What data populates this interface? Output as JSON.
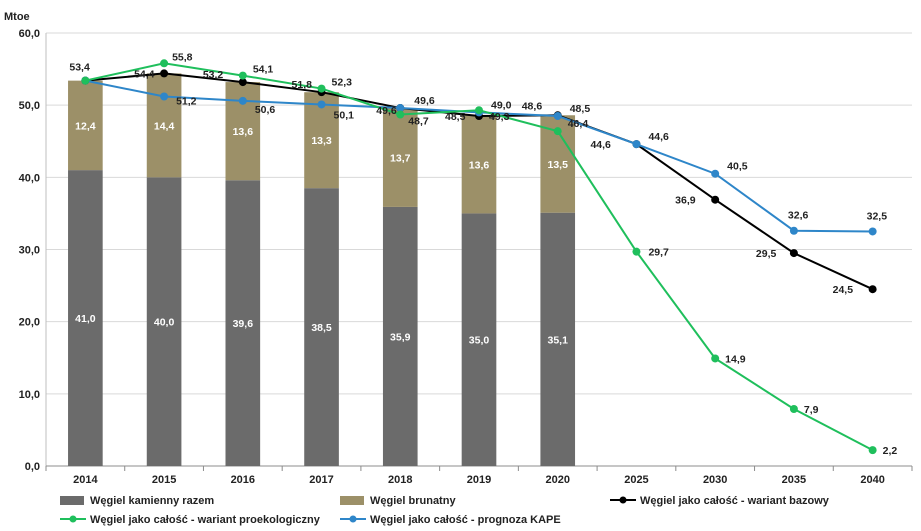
{
  "chart_data": {
    "type": "bar",
    "ylabel": "Mtoe",
    "ylim": [
      0,
      60
    ],
    "yticks": [
      "0,0",
      "10,0",
      "20,0",
      "30,0",
      "40,0",
      "50,0",
      "60,0"
    ],
    "categories": [
      "2014",
      "2015",
      "2016",
      "2017",
      "2018",
      "2019",
      "2020",
      "2025",
      "2030",
      "2035",
      "2040"
    ],
    "grid": true,
    "legend_position": "bottom",
    "colors": {
      "hard_coal": "#6b6b6b",
      "lignite": "#9c9068",
      "base": "#000000",
      "proeco": "#1fbf5c",
      "kape": "#2e86c9",
      "grid": "#d9d9d9"
    },
    "bar_series": [
      {
        "name": "Węgiel kamienny razem",
        "values": [
          41.0,
          40.0,
          39.6,
          38.5,
          35.9,
          35.0,
          35.1,
          null,
          null,
          null,
          null
        ],
        "labels": [
          "41,0",
          "40,0",
          "39,6",
          "38,5",
          "35,9",
          "35,0",
          "35,1",
          "",
          "",
          "",
          ""
        ]
      },
      {
        "name": "Węgiel brunatny",
        "values": [
          12.4,
          14.4,
          13.6,
          13.3,
          13.7,
          13.6,
          13.5,
          null,
          null,
          null,
          null
        ],
        "labels": [
          "12,4",
          "14,4",
          "13,6",
          "13,3",
          "13,7",
          "13,6",
          "13,5",
          "",
          "",
          "",
          ""
        ]
      }
    ],
    "line_series": [
      {
        "name": "Węgiel jako całość - wariant bazowy",
        "values": [
          53.4,
          54.4,
          53.2,
          51.8,
          49.6,
          48.5,
          48.6,
          44.6,
          36.9,
          29.5,
          24.5
        ],
        "labels": [
          "",
          "54,4",
          "53,2",
          "51,8",
          "49,6",
          "48,5",
          "48,6",
          "44,6",
          "36,9",
          "29,5",
          "24,5"
        ]
      },
      {
        "name": "Węgiel jako całość - wariant proekologiczny",
        "values": [
          53.4,
          55.8,
          54.1,
          52.3,
          48.7,
          49.3,
          46.4,
          29.7,
          14.9,
          7.9,
          2.2
        ],
        "labels": [
          "53,4",
          "55,8",
          "54,1",
          "52,3",
          "48,7",
          "49,3",
          "46,4",
          "29,7",
          "14,9",
          "7,9",
          "2,2"
        ]
      },
      {
        "name": "Węgiel jako całość - prognoza KAPE",
        "values": [
          53.4,
          51.2,
          50.6,
          50.1,
          49.6,
          49.0,
          48.5,
          44.6,
          40.5,
          32.6,
          32.5
        ],
        "labels": [
          "",
          "51,2",
          "50,6",
          "50,1",
          "49,6",
          "49,0",
          "48,5",
          "44,6",
          "40,5",
          "32,6",
          "32,5"
        ]
      }
    ]
  }
}
